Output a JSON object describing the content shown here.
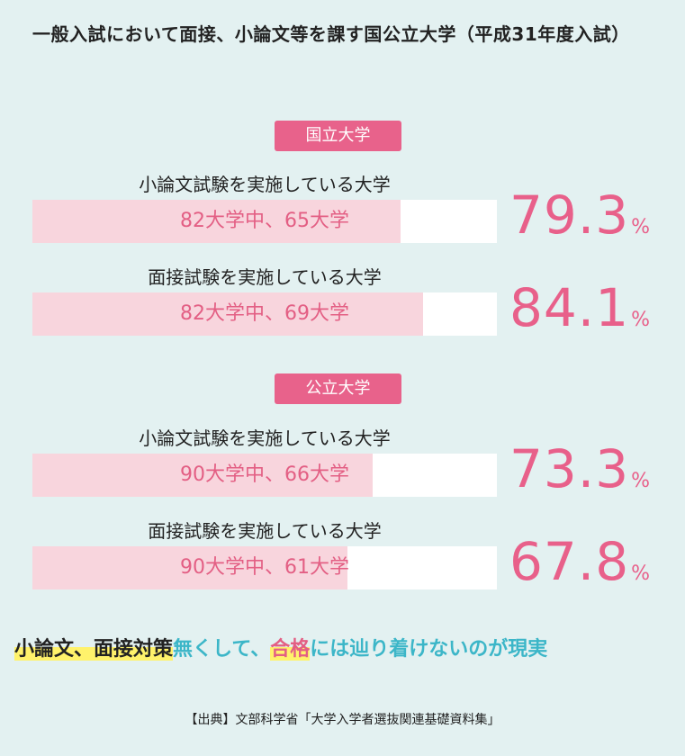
{
  "title": "一般入試において面接、小論文等を課す国公立大学（平成31年度入試）",
  "chart_data": {
    "type": "bar",
    "groups": [
      {
        "name": "国立大学",
        "items": [
          {
            "label": "小論文試験を実施している大学",
            "bar_text": "82大学中、65大学",
            "percent": "79.3",
            "value": 79.3,
            "total": 82,
            "count": 65
          },
          {
            "label": "面接試験を実施している大学",
            "bar_text": "82大学中、69大学",
            "percent": "84.1",
            "value": 84.1,
            "total": 82,
            "count": 69
          }
        ]
      },
      {
        "name": "公立大学",
        "items": [
          {
            "label": "小論文試験を実施している大学",
            "bar_text": "90大学中、66大学",
            "percent": "73.3",
            "value": 73.3,
            "total": 90,
            "count": 66
          },
          {
            "label": "面接試験を実施している大学",
            "bar_text": "90大学中、61大学",
            "percent": "67.8",
            "value": 67.8,
            "total": 90,
            "count": 61
          }
        ]
      }
    ],
    "unit": "%",
    "ylim": [
      0,
      100
    ],
    "colors": {
      "fill": "#f8d5dd",
      "track": "#ffffff",
      "accent": "#e8608a"
    }
  },
  "tagline": {
    "part1": "小論文、面接対策",
    "part2": "無くして、",
    "part3": "合格",
    "part4": "には辿り着けないのが現実"
  },
  "source": "【出典】文部科学省「大学入学者選抜関連基礎資料集」"
}
